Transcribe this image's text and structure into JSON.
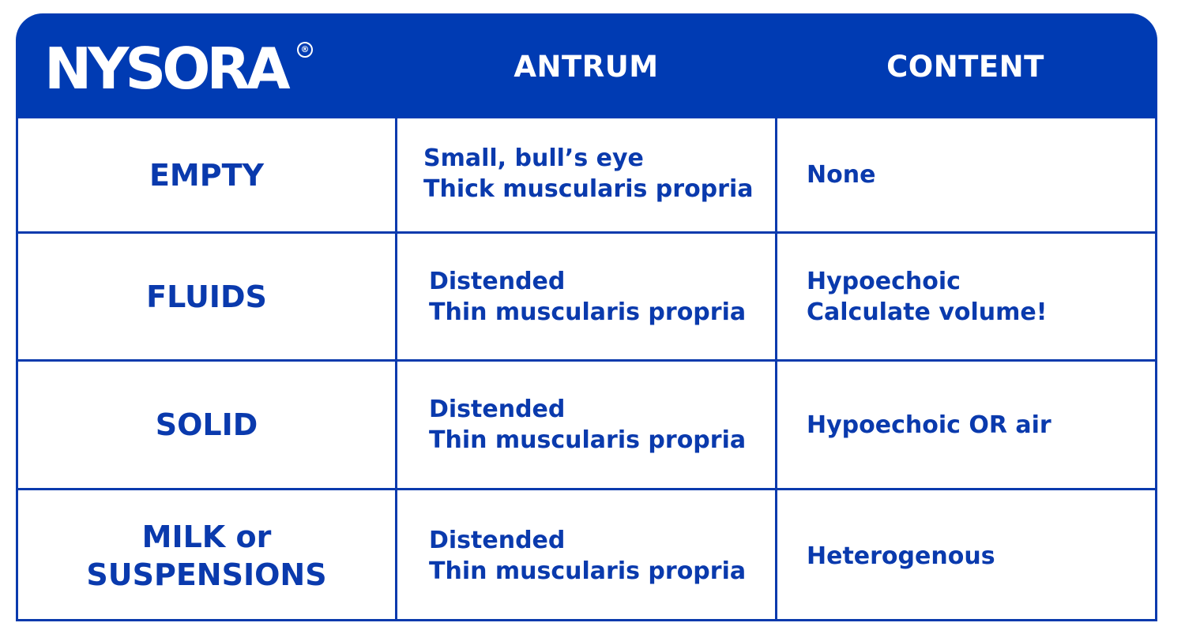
{
  "header": {
    "logo_text": "NYSORA",
    "logo_mark": "®",
    "columns": [
      "ANTRUM",
      "CONTENT"
    ]
  },
  "rows": [
    {
      "state": [
        "EMPTY"
      ],
      "antrum": [
        "Small, bull’s eye",
        "Thick muscularis propria"
      ],
      "content": [
        "None"
      ]
    },
    {
      "state": [
        "FLUIDS"
      ],
      "antrum": [
        "Distended",
        "Thin muscularis propria"
      ],
      "content": [
        "Hypoechoic",
        "Calculate volume!"
      ]
    },
    {
      "state": [
        "SOLID"
      ],
      "antrum": [
        "Distended",
        "Thin muscularis propria"
      ],
      "content": [
        "Hypoechoic OR air"
      ]
    },
    {
      "state": [
        "MILK or",
        "SUSPENSIONS"
      ],
      "antrum": [
        "Distended",
        "Thin muscularis propria"
      ],
      "content": [
        "Heterogenous"
      ]
    }
  ],
  "colors": {
    "header_bg": "#003bb3",
    "text_and_lines": "#0a3aad",
    "background": "#ffffff"
  }
}
